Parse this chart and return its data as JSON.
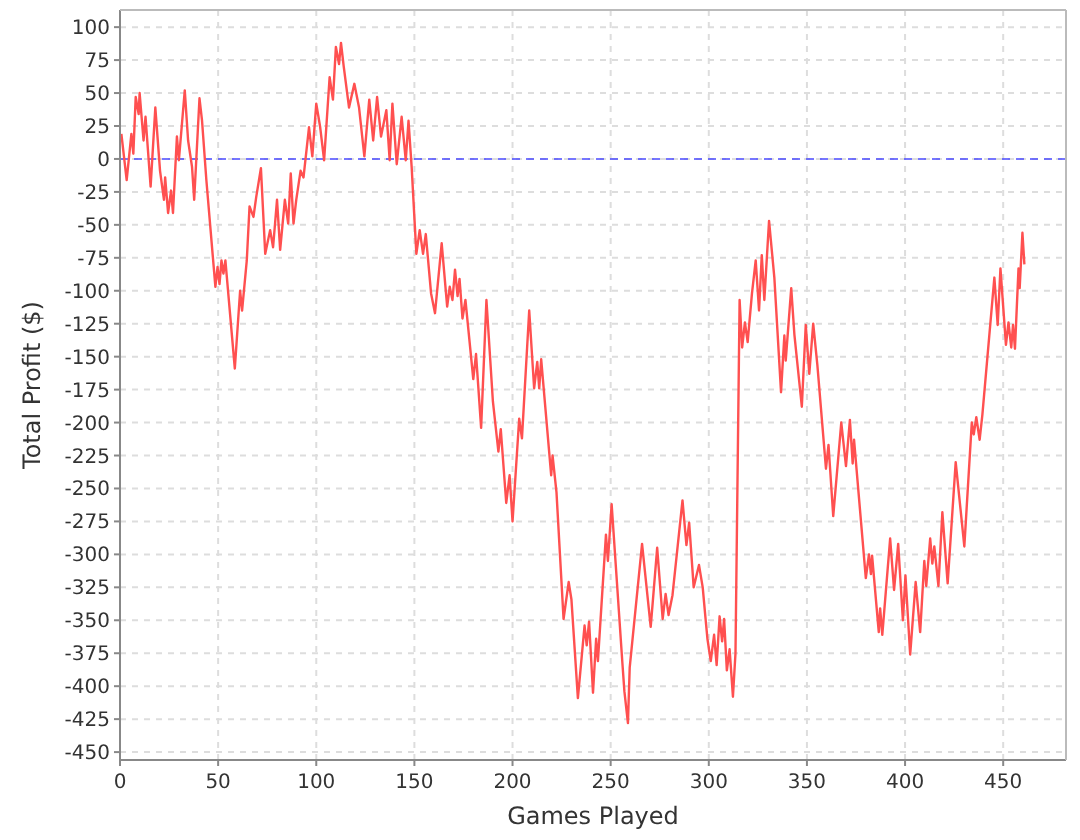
{
  "chart_data": {
    "type": "line",
    "xlabel": "Games Played",
    "ylabel": "Total Profit ($)",
    "xlim": [
      0,
      482
    ],
    "ylim": [
      -456,
      113
    ],
    "xticks": [
      0,
      50,
      100,
      150,
      200,
      250,
      300,
      350,
      400,
      450
    ],
    "yticks": [
      -450,
      -425,
      -400,
      -375,
      -350,
      -325,
      -300,
      -275,
      -250,
      -225,
      -200,
      -175,
      -150,
      -125,
      -100,
      -75,
      -50,
      -25,
      0,
      25,
      50,
      75,
      100
    ],
    "grid": true,
    "marker": "none",
    "line_style": "solid",
    "ref_lines": [
      {
        "axis": "y",
        "value": 0,
        "color": "#4a4aff",
        "line_style": "dashed"
      }
    ],
    "series": [
      {
        "color": "#ff5050",
        "x": [
          0.7,
          3.4,
          5.8,
          6.8,
          8,
          9.5,
          10,
          12,
          13,
          15.6,
          18,
          20.4,
          22.4,
          23,
          24.5,
          26,
          27,
          29,
          30,
          33,
          34.7,
          36.7,
          37.8,
          40.5,
          41.8,
          44,
          48.6,
          49.7,
          50.7,
          51.7,
          52.7,
          53.7,
          58.5,
          61.2,
          62.2,
          64.6,
          66,
          68,
          69.4,
          71.8,
          74,
          76.5,
          78,
          80,
          81.6,
          84,
          85.7,
          87,
          88.4,
          89.8,
          92,
          93.5,
          96.3,
          98,
          100,
          102,
          104,
          106.8,
          108.5,
          110,
          111.6,
          112.6,
          114,
          116.7,
          119.4,
          121.8,
          124.5,
          127,
          129,
          131,
          133,
          135.7,
          137.4,
          138.8,
          141,
          143.5,
          145.6,
          147,
          148.6,
          151,
          152.7,
          154.4,
          155.8,
          158.5,
          160.5,
          163.9,
          166.7,
          168,
          169.4,
          170.7,
          172,
          173,
          174.5,
          176,
          180,
          181.4,
          184,
          186.7,
          190,
          192.8,
          194,
          196.8,
          198.5,
          200,
          203.4,
          204.8,
          208.5,
          211,
          212.6,
          213.6,
          214.6,
          219.7,
          220.4,
          222.4,
          226,
          228.6,
          230,
          233.3,
          236.7,
          237.8,
          239,
          241,
          242.6,
          243.5,
          247.6,
          248.6,
          250.5,
          256,
          257,
          258.8,
          259.7,
          266,
          270.4,
          271.4,
          273.7,
          276.5,
          278,
          279.5,
          281.5,
          286.6,
          288.6,
          290,
          292.3,
          295,
          296.9,
          298.3,
          299.3,
          301,
          302.7,
          304,
          305.5,
          306.8,
          307.8,
          309.2,
          310.6,
          312.3,
          313.6,
          315.7,
          317,
          318.4,
          319.8,
          322,
          323.9,
          325.6,
          327,
          328.3,
          330.7,
          333.4,
          336.8,
          338.5,
          339.2,
          342,
          343.6,
          347.4,
          349.4,
          351.2,
          353.2,
          355.3,
          359.7,
          361,
          363.4,
          367.5,
          369.9,
          371.9,
          373.3,
          374,
          380,
          381.6,
          382.6,
          383.2,
          386.6,
          387.3,
          388.4,
          392.4,
          394.4,
          396.5,
          398.9,
          400.2,
          402.6,
          405.4,
          407.7,
          409.8,
          410.8,
          412.8,
          413.9,
          414.9,
          417,
          419,
          421.7,
          425.8,
          430.2,
          434,
          435,
          436.3,
          438,
          439.4,
          445.5,
          447.2,
          448.6,
          451.4,
          452.7,
          454.1,
          455,
          456,
          457.8,
          458.4,
          459.8,
          460.8
        ],
        "values": [
          19,
          -16,
          19,
          4,
          47,
          34,
          50,
          14,
          32,
          -21,
          39,
          -9,
          -31,
          -14,
          -41,
          -24,
          -41,
          17,
          -1,
          52,
          14,
          -6,
          -31,
          46,
          29,
          -16,
          -97,
          -82,
          -95,
          -77,
          -87,
          -77,
          -159,
          -100,
          -115,
          -77,
          -36,
          -44,
          -29,
          -7,
          -72,
          -54,
          -67,
          -31,
          -69,
          -31,
          -49,
          -11,
          -49,
          -31,
          -9,
          -14,
          24,
          2,
          42,
          24,
          -1,
          62,
          45,
          85,
          72,
          88,
          70,
          39,
          57,
          39,
          2,
          45,
          14,
          47,
          17,
          37,
          -1,
          42,
          -4,
          32,
          -1,
          29,
          -6,
          -72,
          -54,
          -72,
          -57,
          -102,
          -117,
          -64,
          -112,
          -97,
          -107,
          -84,
          -104,
          -91,
          -121,
          -107,
          -167,
          -148,
          -204,
          -107,
          -184,
          -222,
          -205,
          -261,
          -240,
          -275,
          -197,
          -212,
          -115,
          -174,
          -154,
          -174,
          -152,
          -240,
          -225,
          -253,
          -349,
          -321,
          -334,
          -409,
          -354,
          -369,
          -351,
          -405,
          -364,
          -381,
          -285,
          -305,
          -262,
          -383,
          -404,
          -428,
          -386,
          -292,
          -355,
          -337,
          -295,
          -349,
          -330,
          -346,
          -331,
          -259,
          -293,
          -276,
          -325,
          -308,
          -325,
          -348,
          -364,
          -381,
          -361,
          -384,
          -347,
          -366,
          -349,
          -388,
          -372,
          -408,
          -375,
          -107,
          -143,
          -124,
          -139,
          -102,
          -77,
          -115,
          -73,
          -107,
          -47,
          -90,
          -177,
          -134,
          -153,
          -98,
          -133,
          -188,
          -126,
          -163,
          -125,
          -156,
          -235,
          -217,
          -271,
          -200,
          -233,
          -198,
          -231,
          -213,
          -318,
          -300,
          -315,
          -301,
          -359,
          -341,
          -361,
          -288,
          -327,
          -292,
          -350,
          -316,
          -376,
          -321,
          -359,
          -305,
          -324,
          -288,
          -307,
          -294,
          -324,
          -268,
          -322,
          -230,
          -294,
          -200,
          -209,
          -196,
          -213,
          -194,
          -90,
          -126,
          -83,
          -141,
          -124,
          -143,
          -126,
          -144,
          -83,
          -98,
          -56,
          -80
        ]
      }
    ]
  }
}
